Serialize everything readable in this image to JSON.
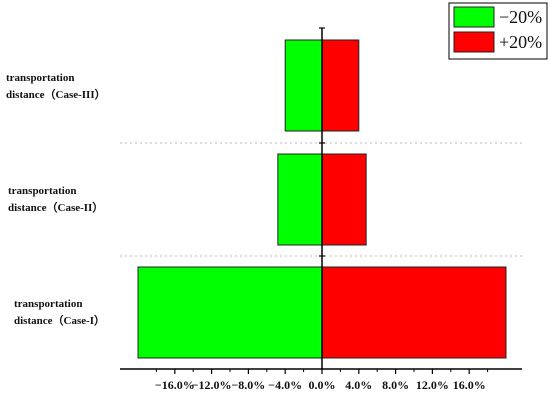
{
  "chart_data": {
    "type": "bar",
    "orientation": "horizontal",
    "categories": [
      {
        "line1": "transportation",
        "line2": "distance（Case-III）"
      },
      {
        "line1": "transportation",
        "line2": "distance（Case-II）"
      },
      {
        "line1": "transportation",
        "line2": "distance（Case-I）"
      }
    ],
    "series": [
      {
        "name": "−20%",
        "color": "#00ff00",
        "values": [
          -4.0,
          -4.8,
          -20.0
        ]
      },
      {
        "name": "+20%",
        "color": "#ff0000",
        "values": [
          4.0,
          4.8,
          20.0
        ]
      }
    ],
    "xlim": [
      -22,
      25
    ],
    "xticks": [
      {
        "value": -16,
        "label": "−16.0%"
      },
      {
        "value": -12,
        "label": "−12.0%"
      },
      {
        "value": -8,
        "label": "−8.0%"
      },
      {
        "value": -4,
        "label": "−4.0%"
      },
      {
        "value": 0,
        "label": "0.0%"
      },
      {
        "value": 4,
        "label": "4.0%"
      },
      {
        "value": 8,
        "label": "8.0%"
      },
      {
        "value": 12,
        "label": "12.0%"
      },
      {
        "value": 16,
        "label": "16.0%"
      }
    ],
    "legend_position": "top-right",
    "grid": "dashed separators between categories",
    "title": "",
    "xlabel": "",
    "ylabel": ""
  }
}
